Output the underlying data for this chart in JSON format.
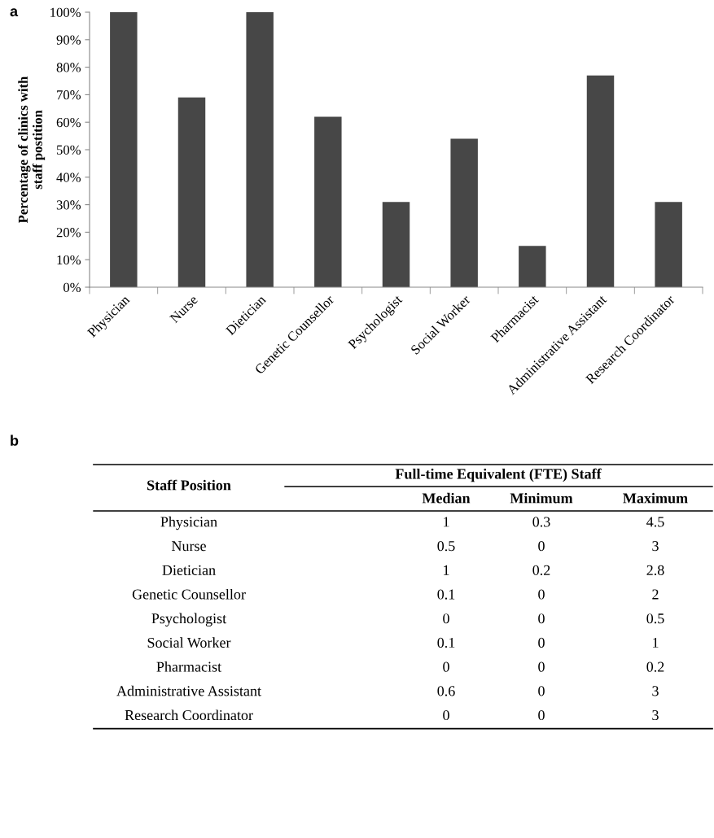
{
  "chart_data": [
    {
      "type": "bar",
      "title": "a",
      "ylabel": "Percentage of clinics with\nstaff postition",
      "categories": [
        "Physician",
        "Nurse",
        "Dietician",
        "Genetic Counsellor",
        "Psychologist",
        "Social Worker",
        "Pharmacist",
        "Administrative Assistant",
        "Research Coordinator"
      ],
      "values": [
        100,
        69,
        100,
        62,
        31,
        54,
        15,
        77,
        31
      ],
      "color": "#474747",
      "ylim": [
        0,
        100
      ],
      "yticks": [
        {
          "value": 0,
          "label": "0%"
        },
        {
          "value": 10,
          "label": "10%"
        },
        {
          "value": 20,
          "label": "20%"
        },
        {
          "value": 30,
          "label": "30%"
        },
        {
          "value": 40,
          "label": "40%"
        },
        {
          "value": 50,
          "label": "50%"
        },
        {
          "value": 60,
          "label": "60%"
        },
        {
          "value": 70,
          "label": "70%"
        },
        {
          "value": 80,
          "label": "80%"
        },
        {
          "value": 90,
          "label": "90%"
        },
        {
          "value": 100,
          "label": "100%"
        }
      ]
    },
    {
      "type": "other",
      "title": "b",
      "xlabel": "Staff Position",
      "subtitle": "Full-time Equivalent (FTE) Staff",
      "data_labels": true,
      "categories": [
        "Physician",
        "Nurse",
        "Dietician",
        "Genetic Counsellor",
        "Psychologist",
        "Social Worker",
        "Pharmacist",
        "Administrative Assistant",
        "Research Coordinator"
      ],
      "series": [
        {
          "name": "Median",
          "values": [
            1,
            0.5,
            1,
            0.1,
            0,
            0.1,
            0,
            0.6,
            0
          ]
        },
        {
          "name": "Minimum",
          "values": [
            0.3,
            0,
            0.2,
            0,
            0,
            0,
            0,
            0,
            0
          ]
        },
        {
          "name": "Maximum",
          "values": [
            4.5,
            3,
            2.8,
            2,
            0.5,
            1,
            0.2,
            3,
            3
          ]
        }
      ]
    }
  ]
}
